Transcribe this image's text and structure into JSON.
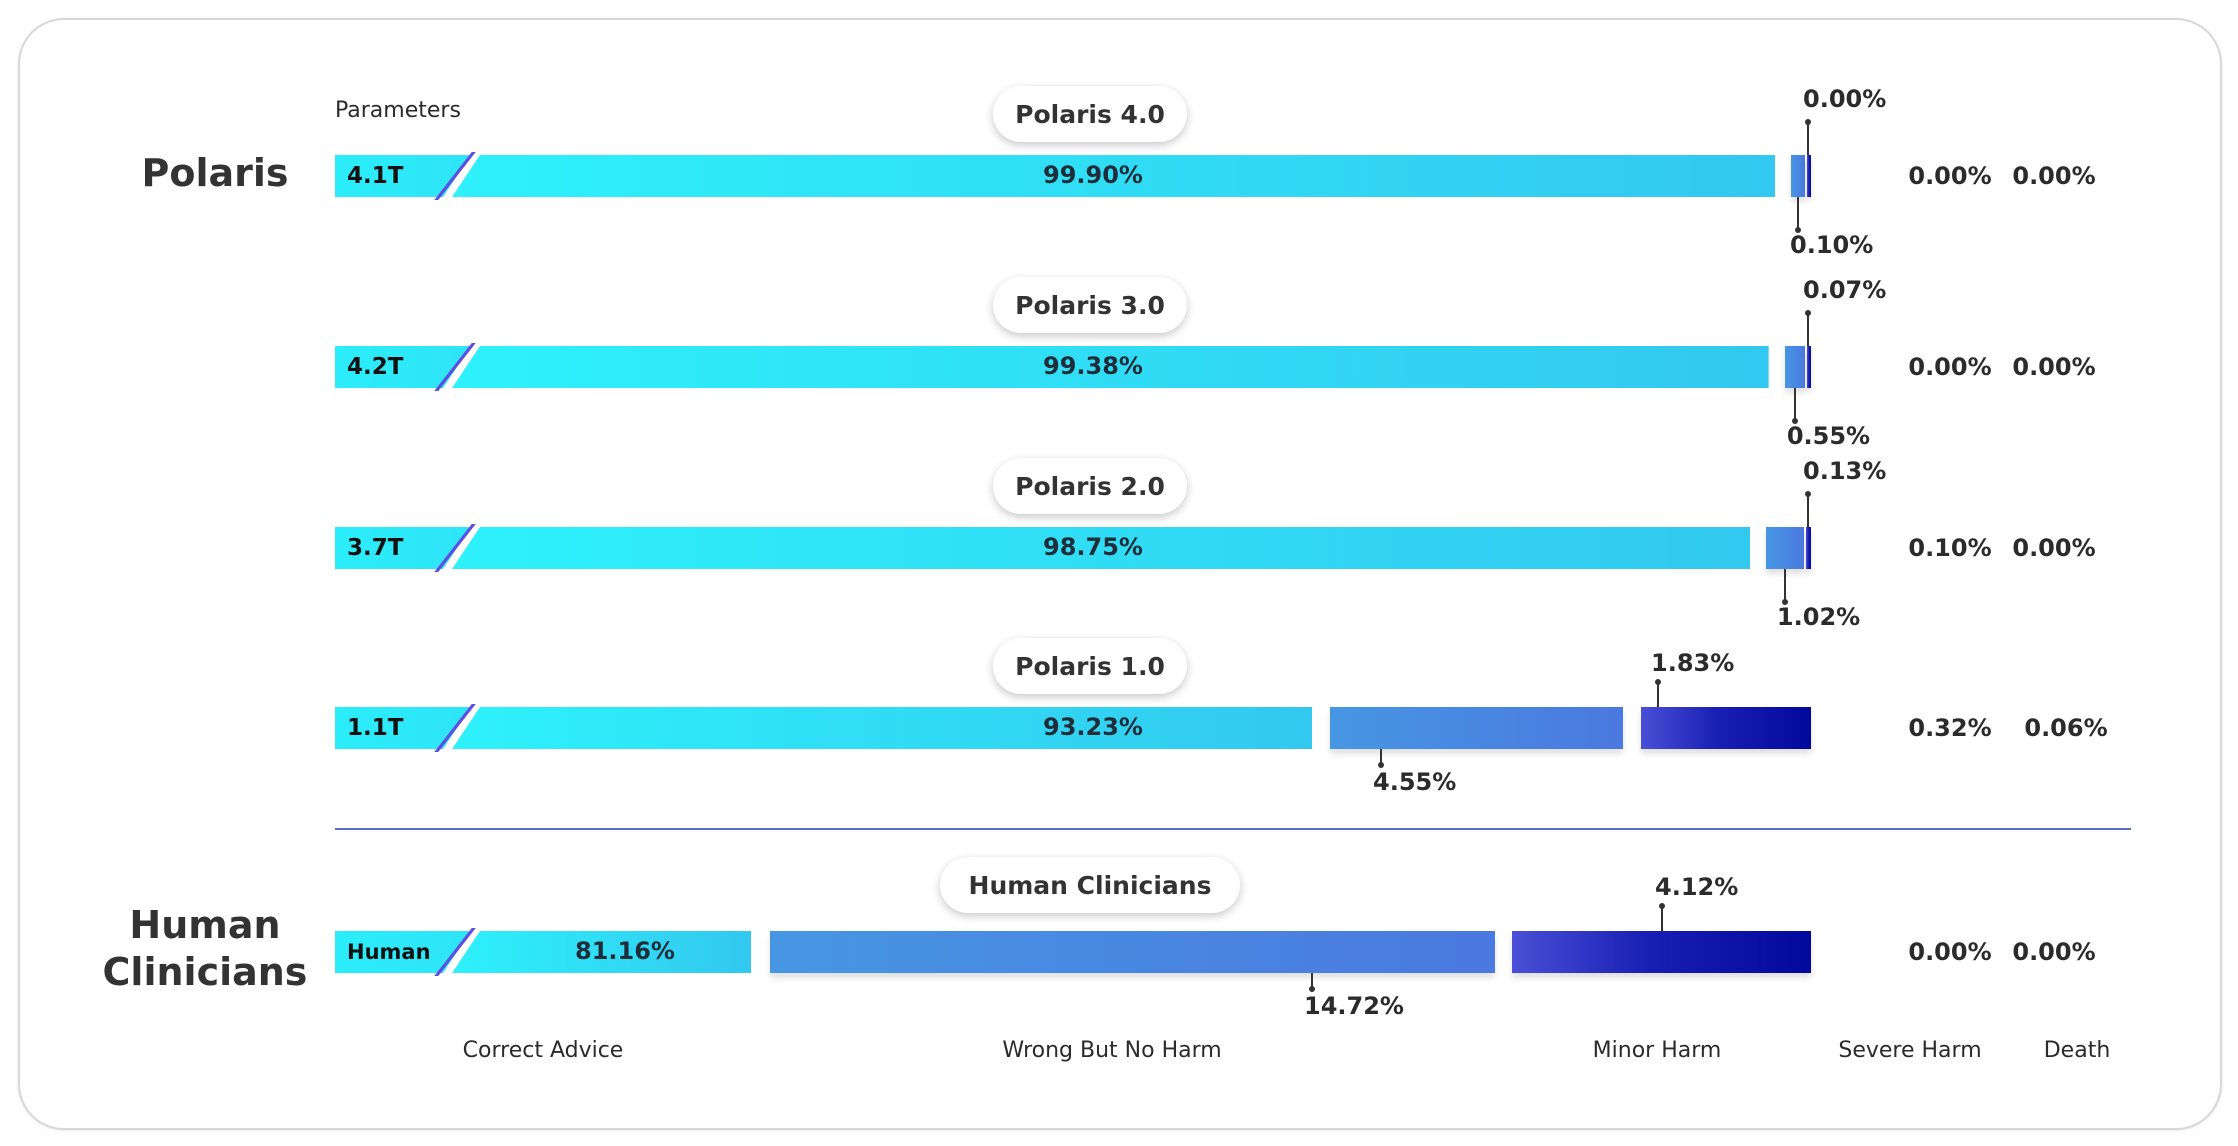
{
  "groups": {
    "polaris": "Polaris",
    "human": "Human Clinicians"
  },
  "parameters_label": "Parameters",
  "chart_data": {
    "type": "bar",
    "orientation": "horizontal",
    "stacked": true,
    "xlabel": "",
    "ylabel": "",
    "categories": [
      "Polaris 4.0",
      "Polaris 3.0",
      "Polaris 2.0",
      "Polaris 1.0",
      "Human Clinicians"
    ],
    "parameters": [
      "4.1T",
      "4.2T",
      "3.7T",
      "1.1T",
      "Human"
    ],
    "series": [
      {
        "name": "Correct Advice",
        "color": "#2ee4f8",
        "values": [
          99.9,
          99.38,
          98.75,
          93.23,
          81.16
        ],
        "labels": [
          "99.90%",
          "99.38%",
          "98.75%",
          "93.23%",
          "81.16%"
        ]
      },
      {
        "name": "Wrong But No Harm",
        "color": "#4a8be1",
        "values": [
          0.1,
          0.55,
          1.02,
          4.55,
          14.72
        ],
        "labels": [
          "0.10%",
          "0.55%",
          "1.02%",
          "4.55%",
          "14.72%"
        ]
      },
      {
        "name": "Minor Harm",
        "color": "#0a10a3",
        "values": [
          0.0,
          0.07,
          0.13,
          1.83,
          4.12
        ],
        "labels": [
          "0.00%",
          "0.07%",
          "0.13%",
          "1.83%",
          "4.12%"
        ]
      },
      {
        "name": "Severe Harm",
        "values": [
          0.0,
          0.0,
          0.1,
          0.32,
          0.0
        ],
        "labels": [
          "0.00%",
          "0.00%",
          "0.10%",
          "0.32%",
          "0.00%"
        ]
      },
      {
        "name": "Death",
        "values": [
          0.0,
          0.0,
          0.0,
          0.06,
          0.0
        ],
        "labels": [
          "0.00%",
          "0.00%",
          "0.00%",
          "0.06%",
          "0.00%"
        ]
      }
    ],
    "xlim": [
      0,
      100
    ],
    "legend": "bottom"
  }
}
